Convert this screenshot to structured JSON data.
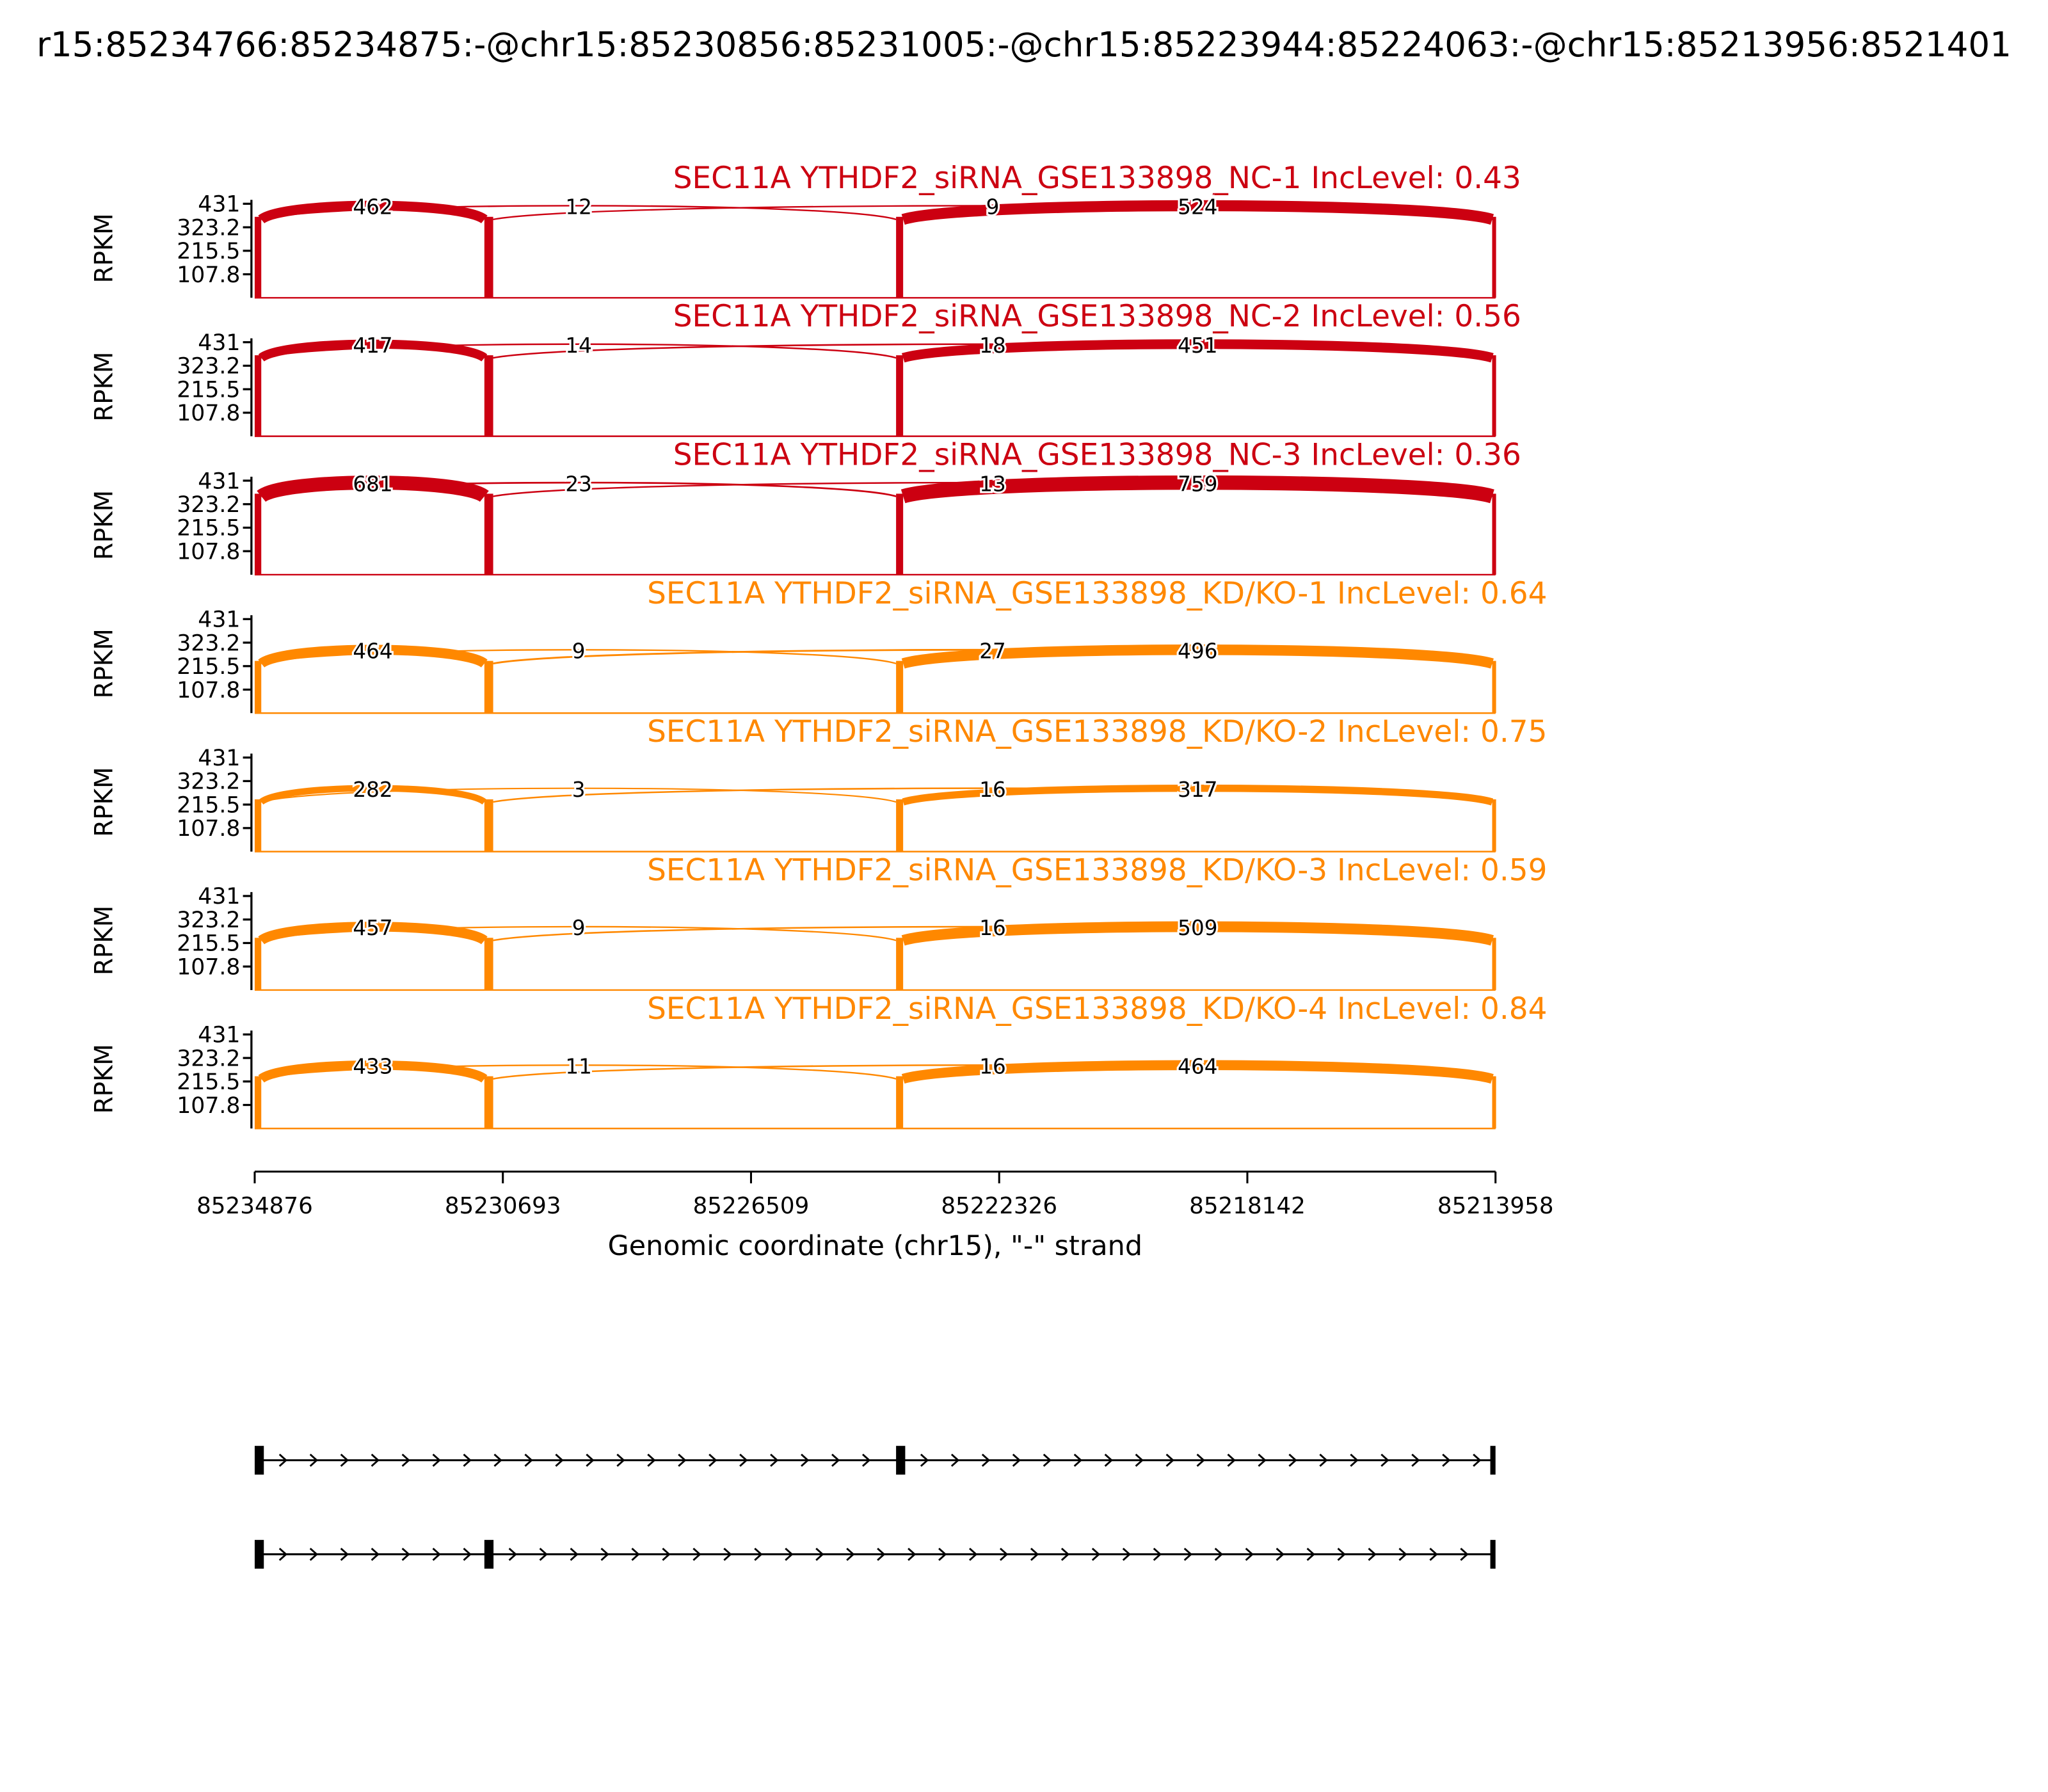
{
  "header": {
    "title": "r15:85234766:85234875:-@chr15:85230856:85231005:-@chr15:85223944:85224063:-@chr15:85213956:8521401"
  },
  "chart_data": {
    "type": "sashimi",
    "gene": "SEC11A",
    "x_axis": {
      "label": "Genomic coordinate (chr15), \"-\" strand",
      "ticks": [
        "85234876",
        "85230693",
        "85226509",
        "85222326",
        "85218142",
        "85213958"
      ]
    },
    "y_axis": {
      "label": "RPKM",
      "ticks": [
        "431",
        "323.2",
        "215.5",
        "107.8"
      ],
      "max": 431
    },
    "colors": {
      "nc": "#CC0011",
      "kd": "#FF8800"
    },
    "junction_pairs": [
      [
        0,
        1
      ],
      [
        0,
        2
      ],
      [
        1,
        3
      ],
      [
        2,
        3
      ]
    ],
    "tracks": [
      {
        "title": "SEC11A YTHDF2_siRNA_GSE133898_NC-1 IncLevel: 0.43",
        "group": "nc",
        "inc_level": 0.43,
        "junction_counts": [
          462,
          12,
          9,
          524
        ]
      },
      {
        "title": "SEC11A YTHDF2_siRNA_GSE133898_NC-2 IncLevel: 0.56",
        "group": "nc",
        "inc_level": 0.56,
        "junction_counts": [
          417,
          14,
          18,
          451
        ]
      },
      {
        "title": "SEC11A YTHDF2_siRNA_GSE133898_NC-3 IncLevel: 0.36",
        "group": "nc",
        "inc_level": 0.36,
        "junction_counts": [
          681,
          23,
          13,
          759
        ]
      },
      {
        "title": "SEC11A YTHDF2_siRNA_GSE133898_KD/KO-1 IncLevel: 0.64",
        "group": "kd",
        "inc_level": 0.64,
        "junction_counts": [
          464,
          9,
          27,
          496
        ]
      },
      {
        "title": "SEC11A YTHDF2_siRNA_GSE133898_KD/KO-2 IncLevel: 0.75",
        "group": "kd",
        "inc_level": 0.75,
        "junction_counts": [
          282,
          3,
          16,
          317
        ]
      },
      {
        "title": "SEC11A YTHDF2_siRNA_GSE133898_KD/KO-3 IncLevel: 0.59",
        "group": "kd",
        "inc_level": 0.59,
        "junction_counts": [
          457,
          9,
          16,
          509
        ]
      },
      {
        "title": "SEC11A YTHDF2_siRNA_GSE133898_KD/KO-4 IncLevel: 0.84",
        "group": "kd",
        "inc_level": 0.84,
        "junction_counts": [
          433,
          11,
          16,
          464
        ]
      }
    ],
    "gene_models": [
      {
        "exon_indices": [
          0,
          2,
          3
        ]
      },
      {
        "exon_indices": [
          0,
          1,
          3
        ]
      }
    ]
  }
}
